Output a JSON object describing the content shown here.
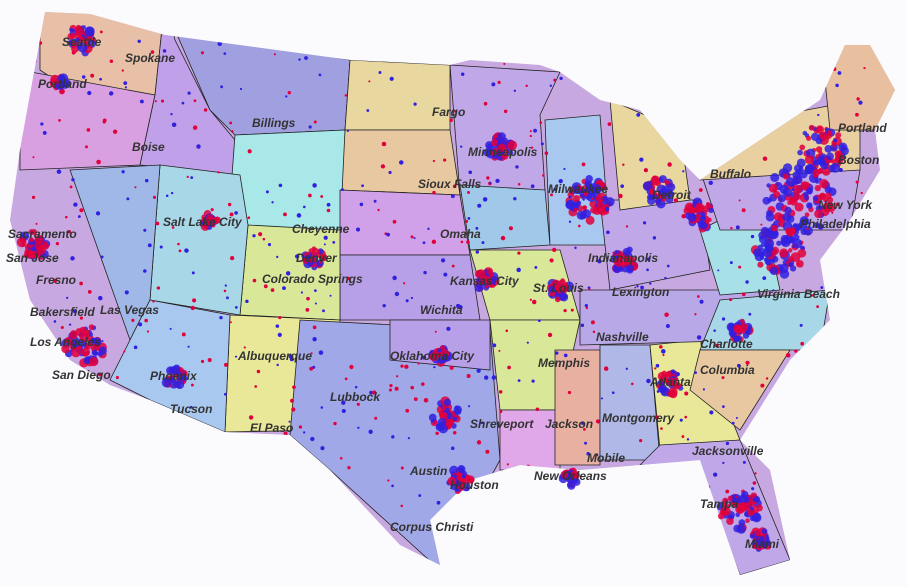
{
  "map": {
    "cities": [
      "Seattle",
      "Spokane",
      "Portland",
      "Boise",
      "Billings",
      "Fargo",
      "Minneapolis",
      "Sioux Falls",
      "Milwaukee",
      "Detroit",
      "Buffalo",
      "Portland",
      "Boston",
      "New York",
      "Philadelphia",
      "Sacramento",
      "San Jose",
      "Salt Lake City",
      "Cheyenne",
      "Denver",
      "Omaha",
      "Fresno",
      "Colorado Springs",
      "Kansas City",
      "St. Louis",
      "Indianapolis",
      "Lexington",
      "Virginia Beach",
      "Wichita",
      "Las Vegas",
      "Bakersfield",
      "Los Angeles",
      "San Diego",
      "Phoenix",
      "Albuquerque",
      "Oklahoma City",
      "Memphis",
      "Nashville",
      "Charlotte",
      "Atlanta",
      "Columbia",
      "Lubbock",
      "Tucson",
      "El Paso",
      "Shreveport",
      "Jackson",
      "Montgomery",
      "Jacksonville",
      "Mobile",
      "Austin",
      "Houston",
      "New Orleans",
      "Tampa",
      "Miami",
      "Corpus Christi"
    ]
  }
}
